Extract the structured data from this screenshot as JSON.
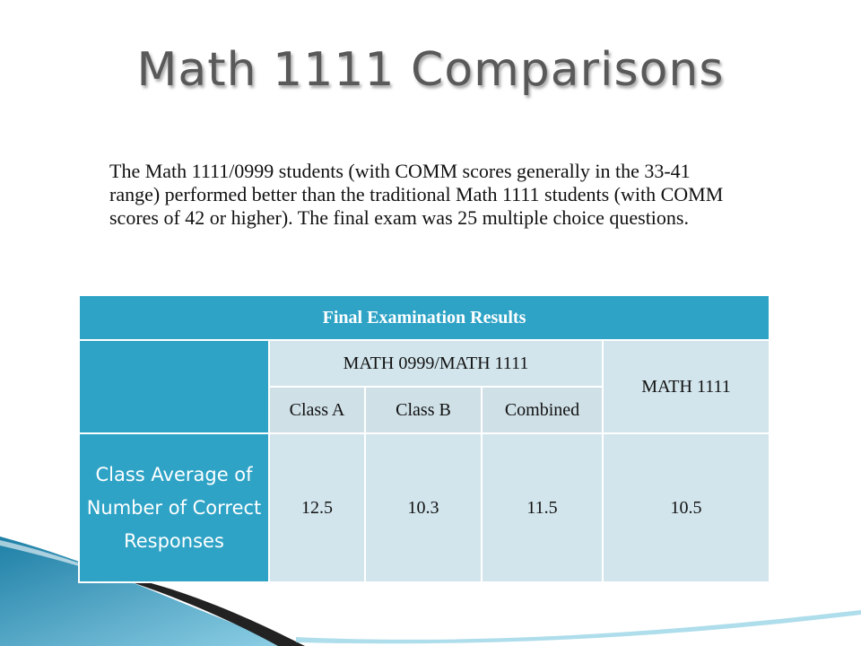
{
  "slide": {
    "title": "Math 1111 Comparisons",
    "body": "The Math 1111/0999 students (with COMM scores generally in the 33-41 range) performed better than the traditional Math 1111 students (with COMM scores of 42 or higher). The final exam was 25 multiple choice questions."
  },
  "table": {
    "header": "Final Examination Results",
    "group_header": "MATH 0999/MATH 1111",
    "comparison_header": "MATH 1111",
    "subheaders": [
      "Class A",
      "Class B",
      "Combined"
    ],
    "row_label": "Class Average of Number of Correct Responses",
    "values": [
      "12.5",
      "10.3",
      "11.5",
      "10.5"
    ]
  },
  "colors": {
    "accent": "#2ea3c6",
    "cell": "#d2e5ec",
    "title": "#595959"
  }
}
